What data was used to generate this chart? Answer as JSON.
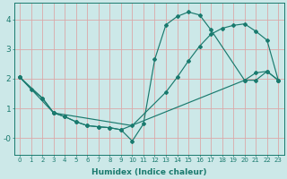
{
  "background_color": "#cce8e8",
  "grid_color": "#dba8a8",
  "line_color": "#1a7a6e",
  "xlabel": "Humidex (Indice chaleur)",
  "xlim": [
    -0.5,
    23.5
  ],
  "ylim": [
    -0.55,
    4.55
  ],
  "xticks": [
    0,
    1,
    2,
    3,
    4,
    5,
    6,
    7,
    8,
    9,
    10,
    11,
    12,
    13,
    14,
    15,
    16,
    17,
    18,
    19,
    20,
    21,
    22,
    23
  ],
  "yticks": [
    0,
    1,
    2,
    3,
    4
  ],
  "ytick_labels": [
    "-0",
    "1",
    "2",
    "3",
    "4"
  ],
  "line1_x": [
    0,
    1,
    2,
    3,
    10,
    13,
    14,
    15,
    16,
    17,
    18,
    19,
    20,
    21,
    22,
    23
  ],
  "line1_y": [
    2.05,
    1.65,
    1.35,
    0.85,
    0.42,
    1.55,
    2.05,
    2.6,
    3.1,
    3.5,
    3.7,
    3.8,
    3.85,
    3.6,
    3.3,
    1.95
  ],
  "line2_x": [
    0,
    2,
    3,
    4,
    5,
    6,
    7,
    8,
    9,
    10,
    11,
    12,
    13,
    14,
    15,
    16,
    17,
    20,
    21,
    22,
    23
  ],
  "line2_y": [
    2.05,
    1.35,
    0.85,
    0.72,
    0.55,
    0.42,
    0.38,
    0.35,
    0.28,
    -0.1,
    0.48,
    2.65,
    3.82,
    4.1,
    4.25,
    4.15,
    3.65,
    1.95,
    1.95,
    2.25,
    1.95
  ],
  "line3_x": [
    0,
    3,
    4,
    5,
    6,
    7,
    8,
    9,
    20,
    21,
    22,
    23
  ],
  "line3_y": [
    2.05,
    0.85,
    0.72,
    0.55,
    0.42,
    0.38,
    0.35,
    0.28,
    1.95,
    2.2,
    2.25,
    1.95
  ]
}
